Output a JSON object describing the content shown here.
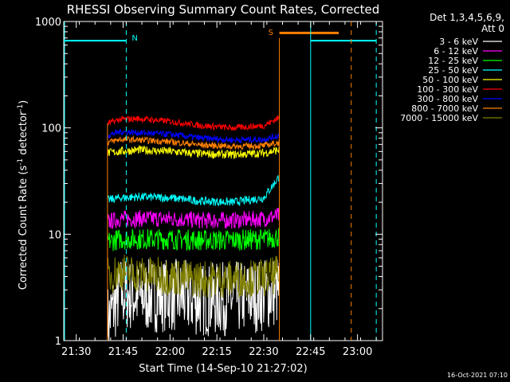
{
  "chart_data": {
    "type": "line",
    "title": "RHESSI Observing Summary Count Rates, Corrected",
    "xlabel": "Start Time (14-Sep-10 21:27:02)",
    "ylabel_main": "Corrected Count Rate (s",
    "ylabel_sup1": "-1",
    "ylabel_mid": " detector",
    "ylabel_sup2": "-1",
    "ylabel_end": ")",
    "y_log_scale": true,
    "ylim": [
      1,
      1000
    ],
    "xlim_minutes": [
      "21:26",
      "23:08"
    ],
    "y_ticks": [
      "1",
      "10",
      "100",
      "1000"
    ],
    "x_ticks": [
      "21:30",
      "21:45",
      "22:00",
      "22:15",
      "22:30",
      "22:45",
      "23:00"
    ],
    "legend_header": [
      "Det 1,3,4,5,6,9,",
      "Att 0"
    ],
    "legend_placement": "right",
    "series": [
      {
        "name": "3 - 6 keV",
        "color": "#ffffff",
        "x": [
          "21:40",
          "21:44",
          "21:50",
          "22:00",
          "22:10",
          "22:20",
          "22:30",
          "22:35"
        ],
        "values": [
          1.5,
          2.8,
          2.6,
          2.7,
          2.4,
          2.5,
          2.7,
          3.0
        ]
      },
      {
        "name": "6 - 12 keV",
        "color": "#ff00ff",
        "x": [
          "21:40",
          "21:44",
          "21:50",
          "22:00",
          "22:10",
          "22:20",
          "22:30",
          "22:35"
        ],
        "values": [
          13,
          14,
          14,
          14,
          13.5,
          13.5,
          14,
          15
        ]
      },
      {
        "name": "12 - 25 keV",
        "color": "#00ff00",
        "x": [
          "21:40",
          "21:44",
          "21:50",
          "22:00",
          "22:10",
          "22:20",
          "22:30",
          "22:35"
        ],
        "values": [
          8.5,
          9,
          9,
          9,
          8.8,
          8.8,
          9,
          9.5
        ]
      },
      {
        "name": "25 - 50 keV",
        "color": "#00ffff",
        "x": [
          "21:40",
          "21:44",
          "21:50",
          "22:00",
          "22:10",
          "22:20",
          "22:30",
          "22:35"
        ],
        "values": [
          21,
          22,
          22.5,
          22,
          20.5,
          20,
          22,
          35
        ]
      },
      {
        "name": "50 - 100 keV",
        "color": "#ffff00",
        "x": [
          "21:40",
          "21:44",
          "21:50",
          "22:00",
          "22:10",
          "22:20",
          "22:30",
          "22:35"
        ],
        "values": [
          58,
          60,
          62,
          60,
          57,
          56,
          58,
          62
        ]
      },
      {
        "name": "100 - 300 keV",
        "color": "#ff0000",
        "x": [
          "21:40",
          "21:44",
          "21:50",
          "22:00",
          "22:10",
          "22:20",
          "22:30",
          "22:35"
        ],
        "values": [
          110,
          120,
          122,
          115,
          105,
          100,
          105,
          125
        ]
      },
      {
        "name": "300 - 800 keV",
        "color": "#0000ff",
        "x": [
          "21:40",
          "21:44",
          "21:50",
          "22:00",
          "22:10",
          "22:20",
          "22:30",
          "22:35"
        ],
        "values": [
          85,
          92,
          90,
          87,
          80,
          77,
          78,
          85
        ]
      },
      {
        "name": "800 - 7000 keV",
        "color": "#ff8000",
        "x": [
          "21:40",
          "21:44",
          "21:50",
          "22:00",
          "22:10",
          "22:20",
          "22:30",
          "22:35"
        ],
        "values": [
          73,
          78,
          77,
          74,
          69,
          67,
          68,
          73
        ]
      },
      {
        "name": "7000 - 15000 keV",
        "color": "#808000",
        "x": [
          "21:40",
          "21:44",
          "21:50",
          "22:00",
          "22:10",
          "22:20",
          "22:30",
          "22:35"
        ],
        "values": [
          4,
          4.5,
          4.2,
          4.0,
          3.8,
          3.8,
          3.9,
          4.2
        ]
      }
    ],
    "annotations": [
      {
        "text": "N",
        "color": "#00ffff"
      },
      {
        "text": "S",
        "color": "#ff8000"
      }
    ],
    "timestamp": "16-Oct-2021 07:10"
  }
}
